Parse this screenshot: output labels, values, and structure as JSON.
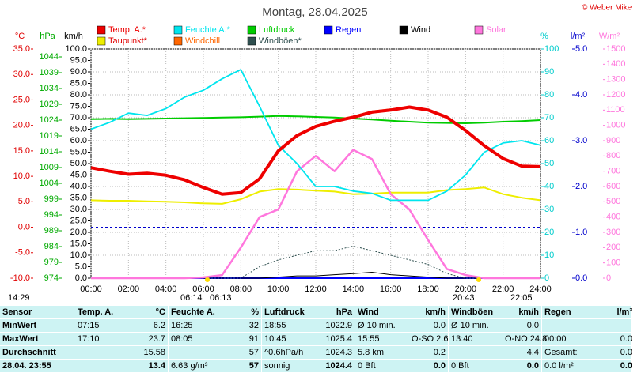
{
  "chart_data": {
    "type": "line",
    "title": "Montag, 28.04.2025",
    "copyright": "© Weber Mike",
    "grid": true,
    "frost_line": 0,
    "x": [
      0,
      1,
      2,
      3,
      4,
      5,
      6,
      7,
      8,
      9,
      10,
      11,
      12,
      13,
      14,
      15,
      16,
      17,
      18,
      19,
      20,
      21,
      22,
      23,
      24
    ],
    "xlim": [
      0,
      24
    ],
    "xticks": [
      {
        "value": 0,
        "label": "00:00"
      },
      {
        "value": 2,
        "label": "02:00"
      },
      {
        "value": 4,
        "label": "04:00"
      },
      {
        "value": 6,
        "label": "06:00"
      },
      {
        "value": 8,
        "label": "08:00"
      },
      {
        "value": 10,
        "label": "10:00"
      },
      {
        "value": 12,
        "label": "12:00"
      },
      {
        "value": 14,
        "label": "14:00"
      },
      {
        "value": 16,
        "label": "16:00"
      },
      {
        "value": 18,
        "label": "18:00"
      },
      {
        "value": 20,
        "label": "20:00"
      },
      {
        "value": 22,
        "label": "22:00"
      },
      {
        "value": 24,
        "label": "24:00"
      }
    ],
    "axes": [
      {
        "unit": "°C",
        "color": "#e00000",
        "lim": [
          -10,
          35
        ],
        "ticks": [
          {
            "value": 35,
            "label": "35.0"
          },
          {
            "value": 30,
            "label": "30.0"
          },
          {
            "value": 25,
            "label": "25.0"
          },
          {
            "value": 20,
            "label": "20.0"
          },
          {
            "value": 15,
            "label": "15.0"
          },
          {
            "value": 10,
            "label": "10.0"
          },
          {
            "value": 5,
            "label": "5.0"
          },
          {
            "value": 0,
            "label": "0.0"
          },
          {
            "value": -5,
            "label": "-5.0"
          },
          {
            "value": -10,
            "label": "-10.0"
          }
        ]
      },
      {
        "unit": "hPa",
        "color": "#00aa00",
        "lim": [
          974,
          1046.5
        ],
        "ticks": [
          1044,
          1039,
          1034,
          1029,
          1024,
          1019,
          1014,
          1009,
          1004,
          999,
          994,
          989,
          984,
          979,
          974
        ]
      },
      {
        "unit": "km/h",
        "color": "#000000",
        "lim": [
          0,
          100
        ],
        "ticks": [
          {
            "value": 100,
            "label": "100.0"
          },
          {
            "value": 95,
            "label": "95.0"
          },
          {
            "value": 90,
            "label": "90.0"
          },
          {
            "value": 85,
            "label": "85.0"
          },
          {
            "value": 80,
            "label": "80.0"
          },
          {
            "value": 75,
            "label": "75.0"
          },
          {
            "value": 70,
            "label": "70.0"
          },
          {
            "value": 65,
            "label": "65.0"
          },
          {
            "value": 60,
            "label": "60.0"
          },
          {
            "value": 55,
            "label": "55.0"
          },
          {
            "value": 50,
            "label": "50.0"
          },
          {
            "value": 45,
            "label": "45.0"
          },
          {
            "value": 40,
            "label": "40.0"
          },
          {
            "value": 35,
            "label": "35.0"
          },
          {
            "value": 30,
            "label": "30.0"
          },
          {
            "value": 25,
            "label": "25.0"
          },
          {
            "value": 20,
            "label": "20.0"
          },
          {
            "value": 15,
            "label": "15.0"
          },
          {
            "value": 10,
            "label": "10.0"
          },
          {
            "value": 5,
            "label": "5.0"
          },
          {
            "value": 0,
            "label": "0.0"
          }
        ]
      },
      {
        "unit": "%",
        "color": "#00cccc",
        "lim": [
          0,
          100
        ],
        "ticks": [
          100,
          90,
          80,
          70,
          60,
          50,
          40,
          30,
          20,
          10,
          0
        ]
      },
      {
        "unit": "l/m²",
        "color": "#0000cc",
        "lim": [
          0,
          5
        ],
        "ticks": [
          {
            "value": 5,
            "label": "5.0"
          },
          {
            "value": 4,
            "label": "4.0"
          },
          {
            "value": 3,
            "label": "3.0"
          },
          {
            "value": 2,
            "label": "2.0"
          },
          {
            "value": 1,
            "label": "1.0"
          },
          {
            "value": 0,
            "label": "0.0"
          }
        ]
      },
      {
        "unit": "W/m²",
        "color": "#ff77dd",
        "lim": [
          0,
          1500
        ],
        "ticks": [
          1500,
          1400,
          1300,
          1200,
          1100,
          1000,
          900,
          800,
          700,
          600,
          500,
          400,
          300,
          200,
          100,
          0
        ]
      }
    ],
    "series": [
      {
        "name": "Temp. A.*",
        "color": "#ee0000",
        "axis": "°C",
        "values": [
          11.7,
          11.0,
          10.4,
          10.6,
          10.2,
          9.3,
          7.8,
          6.5,
          6.8,
          9.5,
          15,
          18,
          19.8,
          20.8,
          21.6,
          22.6,
          23,
          23.6,
          23,
          21.6,
          19,
          16,
          13.5,
          12,
          11.9
        ]
      },
      {
        "name": "Feuchte A.*",
        "color": "#00e5ee",
        "axis": "%",
        "values": [
          65,
          68,
          72,
          71,
          74,
          79,
          82,
          87,
          91,
          75,
          58,
          50,
          40,
          40,
          38,
          37,
          34,
          34,
          34,
          38,
          45,
          55,
          59,
          60,
          58
        ]
      },
      {
        "name": "Luftdruck",
        "color": "#00cc00",
        "axis": "hPa",
        "values": [
          1024.3,
          1024.4,
          1024.3,
          1024.4,
          1024.5,
          1024.6,
          1024.7,
          1024.8,
          1024.9,
          1025.1,
          1025.3,
          1025.2,
          1025,
          1024.8,
          1024.5,
          1024.2,
          1023.8,
          1023.5,
          1023.2,
          1023.1,
          1023,
          1023.2,
          1023.5,
          1023.7,
          1024
        ]
      },
      {
        "name": "Regen",
        "color": "#0000ff",
        "axis": "l/m²",
        "values": [
          0,
          0,
          0,
          0,
          0,
          0,
          0,
          0,
          0,
          0,
          0,
          0,
          0,
          0,
          0,
          0,
          0,
          0,
          0,
          0,
          0,
          0,
          0,
          0,
          0
        ]
      },
      {
        "name": "Wind",
        "color": "#000000",
        "axis": "km/h",
        "values": [
          0,
          0,
          0,
          0,
          0,
          0,
          0,
          0,
          0,
          0,
          0.5,
          1,
          1,
          1.5,
          2,
          2.6,
          1.5,
          1,
          0.5,
          0,
          0,
          0,
          0,
          0,
          0
        ]
      },
      {
        "name": "Solar",
        "color": "#ff77dd",
        "axis": "W/m²",
        "values": [
          0,
          0,
          0,
          0,
          0,
          0,
          5,
          20,
          200,
          400,
          450,
          700,
          800,
          700,
          840,
          780,
          550,
          450,
          250,
          60,
          20,
          0,
          0,
          0,
          0
        ]
      },
      {
        "name": "Taupunkt*",
        "color": "#eeee00",
        "axis": "°C",
        "values": [
          5.3,
          5.2,
          5.2,
          5.1,
          5,
          4.9,
          4.7,
          4.6,
          5.5,
          7,
          7.5,
          7.4,
          7.2,
          7,
          6.5,
          6.6,
          6.8,
          6.8,
          6.8,
          7.3,
          7.5,
          7.8,
          6.5,
          5.8,
          5.3
        ]
      },
      {
        "name": "Windchill",
        "color": "#ff6600",
        "axis": "°C",
        "values": [
          11.7,
          11.0,
          10.4,
          10.6,
          10.2,
          9.3,
          7.8,
          6.5,
          6.8,
          9.5,
          15,
          18.2,
          20,
          21,
          21.8,
          22.8,
          23.2,
          23.6,
          23,
          21.6,
          19,
          16,
          13.5,
          12,
          11.9
        ]
      },
      {
        "name": "Windböen*",
        "color": "#2f4f4f",
        "axis": "km/h",
        "values": [
          0,
          0,
          0,
          0,
          0,
          0,
          0,
          0,
          0,
          5,
          8,
          10,
          12,
          12,
          14,
          12,
          10,
          8,
          6,
          2,
          0,
          0,
          0,
          0,
          0
        ]
      }
    ],
    "astro": [
      "14:29",
      "06:14",
      "06:13",
      "20:43",
      "22:05"
    ],
    "table": {
      "header": [
        "Sensor",
        "Temp. A.",
        "°C",
        "Feuchte A.",
        "%",
        "Luftdruck",
        "hPa",
        "Wind",
        "km/h",
        "Windböen",
        "km/h",
        "Regen",
        "l/m²"
      ],
      "rows": [
        [
          "MinWert",
          "07:15",
          "6.2",
          "16:25",
          "32",
          "18:55",
          "1022.9",
          "Ø 10 min.",
          "0.0",
          "Ø 10 min.",
          "0.0",
          null,
          null
        ],
        [
          "MaxWert",
          "17:10",
          "23.7",
          "08:05",
          "91",
          "10:45",
          "1025.4",
          "15:55",
          "O-SO 2.6",
          "13:40",
          "O-NO 24.8",
          "00:00",
          "0.0"
        ],
        [
          "Durchschnitt",
          null,
          "15.58",
          null,
          "57",
          "^0.6hPa/h",
          "1024.3",
          "5.8 km",
          "0.2",
          null,
          "4.4",
          "Gesamt:",
          "0.0"
        ],
        [
          "28.04. 23:55",
          null,
          "13.4",
          "6.63 g/m³",
          "57",
          "sonnig",
          "1024.4",
          "0 Bft",
          "0.0",
          "0 Bft",
          "0.0",
          "0.0 l/m²",
          "0.0"
        ]
      ]
    }
  }
}
